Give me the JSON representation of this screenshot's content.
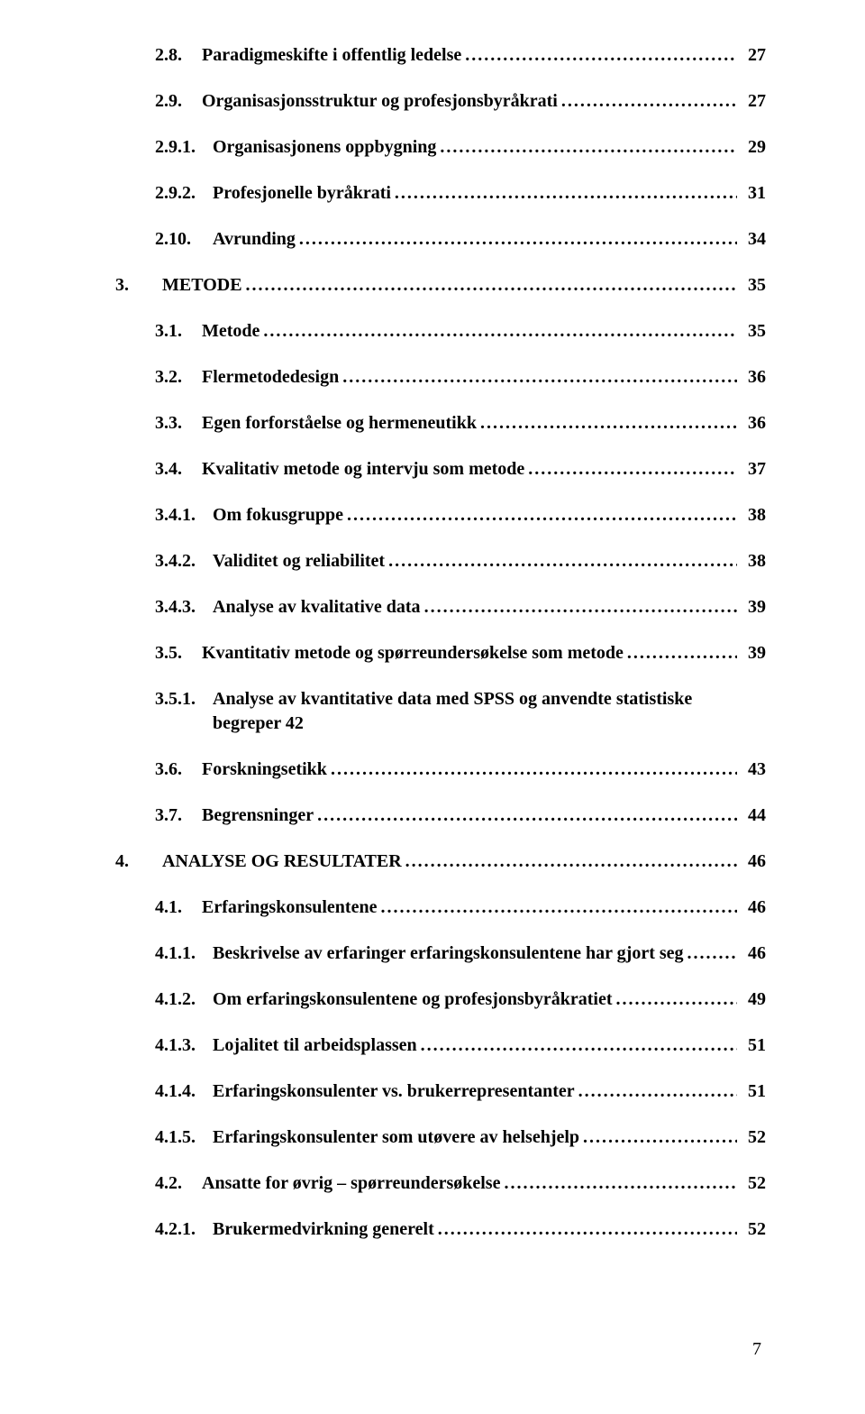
{
  "page_number": "7",
  "entries": [
    {
      "num": "2.8.",
      "title": "Paradigmeskifte i offentlig ledelse",
      "page": "27",
      "indent": 2,
      "numw": "w1"
    },
    {
      "num": "2.9.",
      "title": "Organisasjonsstruktur og profesjonsbyråkrati",
      "page": "27",
      "indent": 2,
      "numw": "w1"
    },
    {
      "num": "2.9.1.",
      "title": "Organisasjonens oppbygning",
      "page": "29",
      "indent": 3,
      "numw": "w2"
    },
    {
      "num": "2.9.2.",
      "title": "Profesjonelle byråkrati",
      "page": "31",
      "indent": 3,
      "numw": "w2"
    },
    {
      "num": "2.10.",
      "title": "Avrunding",
      "page": "34",
      "indent": 2,
      "numw": "w2"
    },
    {
      "num": "3.",
      "title": "METODE",
      "page": "35",
      "indent": 1,
      "numw": "w1"
    },
    {
      "num": "3.1.",
      "title": "Metode",
      "page": "35",
      "indent": 2,
      "numw": "w1"
    },
    {
      "num": "3.2.",
      "title": "Flermetodedesign",
      "page": "36",
      "indent": 2,
      "numw": "w1"
    },
    {
      "num": "3.3.",
      "title": "Egen forforståelse og hermeneutikk",
      "page": "36",
      "indent": 2,
      "numw": "w1"
    },
    {
      "num": "3.4.",
      "title": "Kvalitativ metode og intervju som metode",
      "page": "37",
      "indent": 2,
      "numw": "w1"
    },
    {
      "num": "3.4.1.",
      "title": "Om fokusgruppe",
      "page": "38",
      "indent": 3,
      "numw": "w2"
    },
    {
      "num": "3.4.2.",
      "title": "Validitet og reliabilitet",
      "page": "38",
      "indent": 3,
      "numw": "w2"
    },
    {
      "num": "3.4.3.",
      "title": "Analyse av kvalitative data",
      "page": "39",
      "indent": 3,
      "numw": "w2"
    },
    {
      "num": "3.5.",
      "title": "Kvantitativ metode og spørreundersøkelse som metode",
      "page": "39",
      "indent": 2,
      "numw": "w1"
    },
    {
      "num": "3.5.1.",
      "title": "Analyse av kvantitative data med SPSS og anvendte statistiske begreper 42",
      "page": "",
      "indent": 3,
      "numw": "w2",
      "noleader": true
    },
    {
      "num": "3.6.",
      "title": "Forskningsetikk",
      "page": "43",
      "indent": 2,
      "numw": "w1"
    },
    {
      "num": "3.7.",
      "title": "Begrensninger",
      "page": "44",
      "indent": 2,
      "numw": "w1"
    },
    {
      "num": "4.",
      "title": "ANALYSE OG RESULTATER",
      "page": "46",
      "indent": 1,
      "numw": "w1"
    },
    {
      "num": "4.1.",
      "title": "Erfaringskonsulentene",
      "page": "46",
      "indent": 2,
      "numw": "w1"
    },
    {
      "num": "4.1.1.",
      "title": "Beskrivelse av erfaringer erfaringskonsulentene har gjort seg",
      "page": "46",
      "indent": 3,
      "numw": "w2"
    },
    {
      "num": "4.1.2.",
      "title": "Om erfaringskonsulentene og profesjonsbyråkratiet",
      "page": "49",
      "indent": 3,
      "numw": "w2"
    },
    {
      "num": "4.1.3.",
      "title": "Lojalitet til arbeidsplassen",
      "page": "51",
      "indent": 3,
      "numw": "w2"
    },
    {
      "num": "4.1.4.",
      "title": "Erfaringskonsulenter vs. brukerrepresentanter",
      "page": "51",
      "indent": 3,
      "numw": "w2"
    },
    {
      "num": "4.1.5.",
      "title": "Erfaringskonsulenter som utøvere av helsehjelp",
      "page": "52",
      "indent": 3,
      "numw": "w2"
    },
    {
      "num": "4.2.",
      "title": "Ansatte for øvrig – spørreundersøkelse",
      "page": "52",
      "indent": 2,
      "numw": "w1"
    },
    {
      "num": "4.2.1.",
      "title": "Brukermedvirkning generelt",
      "page": "52",
      "indent": 3,
      "numw": "w2"
    }
  ]
}
